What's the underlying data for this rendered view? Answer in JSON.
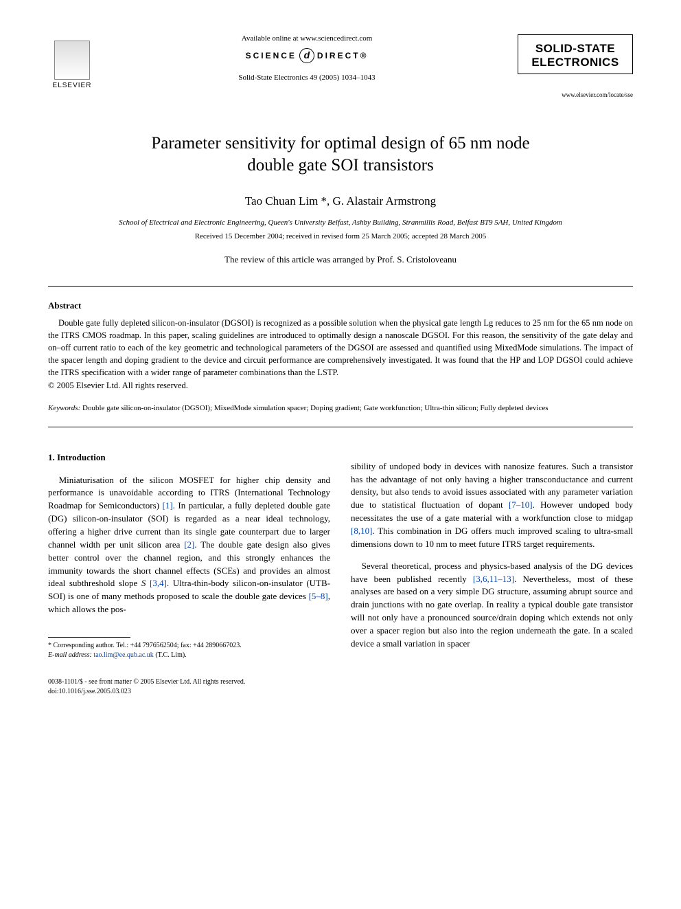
{
  "header": {
    "elsevier": "ELSEVIER",
    "available_online": "Available online at www.sciencedirect.com",
    "science": "SCIENCE",
    "direct": "DIRECT®",
    "journal_ref": "Solid-State Electronics 49 (2005) 1034–1043",
    "journal_name_1": "SOLID-STATE",
    "journal_name_2": "ELECTRONICS",
    "journal_url": "www.elsevier.com/locate/sse"
  },
  "article": {
    "title_line1": "Parameter sensitivity for optimal design of 65 nm node",
    "title_line2": "double gate SOI transistors",
    "authors": "Tao Chuan Lim *, G. Alastair Armstrong",
    "affiliation": "School of Electrical and Electronic Engineering, Queen's University Belfast, Ashby Building, Stranmillis Road, Belfast BT9 5AH, United Kingdom",
    "dates": "Received 15 December 2004; received in revised form 25 March 2005; accepted 28 March 2005",
    "reviewer": "The review of this article was arranged by Prof. S. Cristoloveanu"
  },
  "abstract": {
    "heading": "Abstract",
    "text": "Double gate fully depleted silicon-on-insulator (DGSOI) is recognized as a possible solution when the physical gate length Lg reduces to 25 nm for the 65 nm node on the ITRS CMOS roadmap. In this paper, scaling guidelines are introduced to optimally design a nanoscale DGSOI. For this reason, the sensitivity of the gate delay and on–off current ratio to each of the key geometric and technological parameters of the DGSOI are assessed and quantified using MixedMode simulations. The impact of the spacer length and doping gradient to the device and circuit performance are comprehensively investigated. It was found that the HP and LOP DGSOI could achieve the ITRS specification with a wider range of parameter combinations than the LSTP.",
    "copyright": "© 2005 Elsevier Ltd. All rights reserved."
  },
  "keywords": {
    "label": "Keywords:",
    "text": " Double gate silicon-on-insulator (DGSOI); MixedMode simulation spacer; Doping gradient; Gate workfunction; Ultra-thin silicon; Fully depleted devices"
  },
  "intro": {
    "heading": "1. Introduction",
    "col1_para1_a": "Miniaturisation of the silicon MOSFET for higher chip density and performance is unavoidable according to ITRS (International Technology Roadmap for Semiconductors) ",
    "ref1": "[1]",
    "col1_para1_b": ". In particular, a fully depleted double gate (DG) silicon-on-insulator (SOI) is regarded as a near ideal technology, offering a higher drive current than its single gate counterpart due to larger channel width per unit silicon area ",
    "ref2": "[2]",
    "col1_para1_c": ". The double gate design also gives better control over the channel region, and this strongly enhances the immunity towards the short channel effects (SCEs) and provides an almost ideal subthreshold slope ",
    "col1_para1_c_italic": "S",
    "col1_para1_c2": " ",
    "ref34": "[3,4]",
    "col1_para1_d": ". Ultra-thin-body silicon-on-insulator (UTB-SOI) is one of many methods proposed to scale the double gate devices ",
    "ref58": "[5–8]",
    "col1_para1_e": ", which allows the pos-",
    "col2_para1_a": "sibility of undoped body in devices with nanosize features. Such a transistor has the advantage of not only having a higher transconductance and current density, but also tends to avoid issues associated with any parameter variation due to statistical fluctuation of dopant ",
    "ref710": "[7–10]",
    "col2_para1_b": ". However undoped body necessitates the use of a gate material with a workfunction close to midgap ",
    "ref810": "[8,10]",
    "col2_para1_c": ". This combination in DG offers much improved scaling to ultra-small dimensions down to 10 nm to meet future ITRS target requirements.",
    "col2_para2_a": "Several theoretical, process and physics-based analysis of the DG devices have been published recently ",
    "ref361113": "[3,6,11–13]",
    "col2_para2_b": ". Nevertheless, most of these analyses are based on a very simple DG structure, assuming abrupt source and drain junctions with no gate overlap. In reality a typical double gate transistor will not only have a pronounced source/drain doping which extends not only over a spacer region but also into the region underneath the gate. In a scaled device a small variation in spacer"
  },
  "footnote": {
    "corresponding": "* Corresponding author. Tel.: +44 7976562504; fax: +44 2890667023.",
    "email_label": "E-mail address:",
    "email": " tao.lim@ee.qub.ac.uk",
    "email_tail": " (T.C. Lim)."
  },
  "footer": {
    "line1": "0038-1101/$ - see front matter © 2005 Elsevier Ltd. All rights reserved.",
    "line2": "doi:10.1016/j.sse.2005.03.023"
  }
}
